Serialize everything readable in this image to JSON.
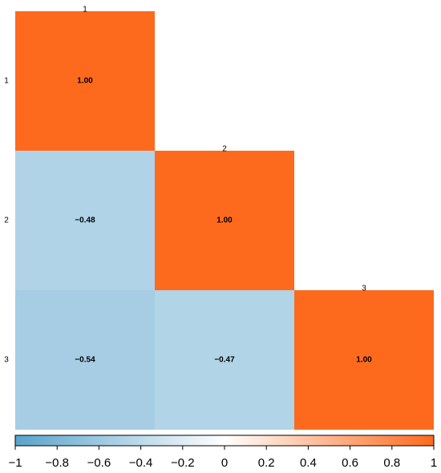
{
  "chart_data": {
    "type": "heatmap",
    "categories": [
      "1",
      "2",
      "3"
    ],
    "values": [
      [
        1,
        null,
        null
      ],
      [
        -0.48,
        1,
        null
      ],
      [
        -0.54,
        -0.47,
        1
      ]
    ],
    "value_labels": [
      [
        "1.00",
        null,
        null
      ],
      [
        "−0.48",
        "1.00",
        null
      ],
      [
        "−0.54",
        "−0.47",
        "1.00"
      ]
    ],
    "colorscale": [
      "#5aa3cc",
      "#ffffff",
      "#fd6a1e"
    ],
    "clim": [
      -1,
      1
    ],
    "cticks": [
      {
        "value": -1,
        "label": "−1"
      },
      {
        "value": -0.8,
        "label": "−0.8"
      },
      {
        "value": -0.6,
        "label": "−0.6"
      },
      {
        "value": -0.4,
        "label": "−0.4"
      },
      {
        "value": -0.2,
        "label": "−0.2"
      },
      0,
      0.2,
      0.4,
      0.6,
      0.8,
      1
    ]
  }
}
